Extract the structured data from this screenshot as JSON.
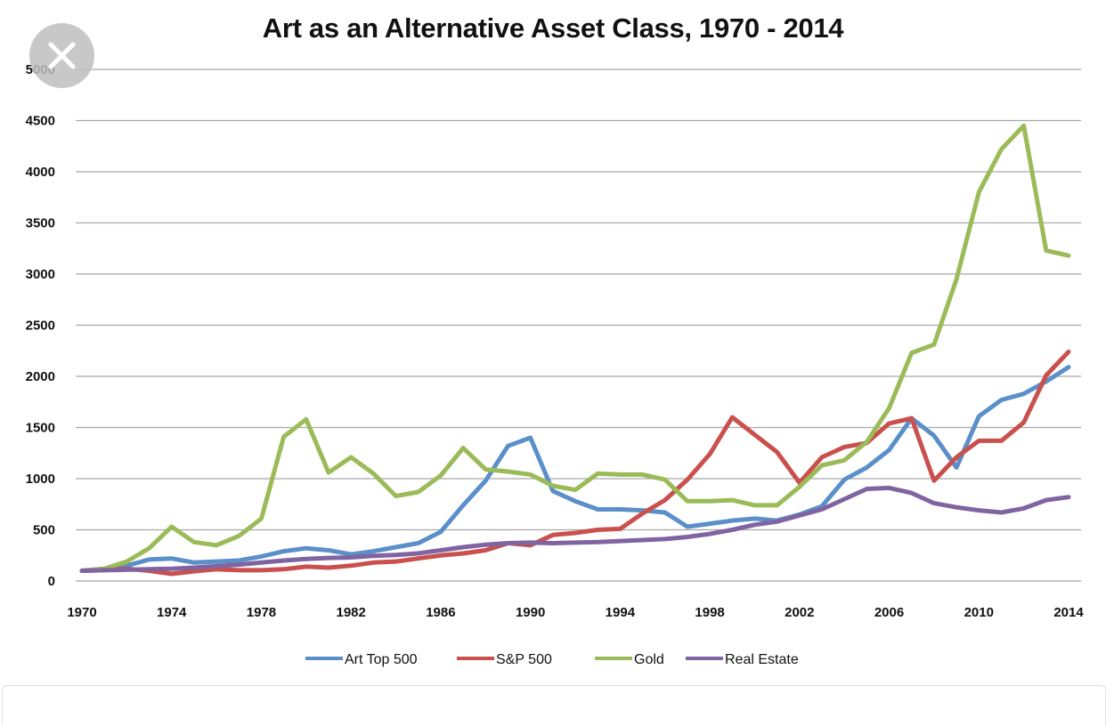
{
  "chart_data": {
    "type": "line",
    "title": "Art as an Alternative Asset Class, 1970 - 2014",
    "xlabel": "",
    "ylabel": "",
    "xlim": [
      1970,
      2014
    ],
    "ylim": [
      0,
      5000
    ],
    "yticks": [
      0,
      500,
      1000,
      1500,
      2000,
      2500,
      3000,
      3500,
      4000,
      4500,
      5000
    ],
    "xticks": [
      1970,
      1974,
      1978,
      1982,
      1986,
      1990,
      1994,
      1998,
      2002,
      2006,
      2010,
      2014
    ],
    "grid": "horizontal",
    "legend_position": "bottom",
    "x": [
      1970,
      1971,
      1972,
      1973,
      1974,
      1975,
      1976,
      1977,
      1978,
      1979,
      1980,
      1981,
      1982,
      1983,
      1984,
      1985,
      1986,
      1987,
      1988,
      1989,
      1990,
      1991,
      1992,
      1993,
      1994,
      1995,
      1996,
      1997,
      1998,
      1999,
      2000,
      2001,
      2002,
      2003,
      2004,
      2005,
      2006,
      2007,
      2008,
      2009,
      2010,
      2011,
      2012,
      2013,
      2014
    ],
    "series": [
      {
        "name": "Art Top 500",
        "color": "#5b8fc9",
        "values": [
          100,
          120,
          150,
          210,
          220,
          180,
          190,
          200,
          240,
          290,
          320,
          300,
          260,
          290,
          330,
          370,
          480,
          740,
          980,
          1320,
          1400,
          880,
          780,
          700,
          700,
          690,
          670,
          530,
          560,
          590,
          610,
          590,
          650,
          730,
          990,
          1110,
          1280,
          1590,
          1420,
          1110,
          1610,
          1770,
          1830,
          1950,
          2090
        ]
      },
      {
        "name": "S&P 500",
        "color": "#c9504d",
        "values": [
          100,
          105,
          120,
          100,
          70,
          95,
          115,
          105,
          105,
          115,
          140,
          130,
          150,
          180,
          190,
          220,
          250,
          270,
          300,
          370,
          350,
          450,
          470,
          500,
          510,
          660,
          790,
          990,
          1240,
          1600,
          1430,
          1260,
          960,
          1210,
          1310,
          1350,
          1540,
          1590,
          980,
          1210,
          1370,
          1370,
          1550,
          2010,
          2240
        ]
      },
      {
        "name": "Gold",
        "color": "#9bbb59",
        "values": [
          100,
          120,
          190,
          320,
          530,
          380,
          350,
          440,
          610,
          1410,
          1580,
          1060,
          1210,
          1050,
          830,
          870,
          1030,
          1300,
          1090,
          1070,
          1040,
          930,
          890,
          1050,
          1040,
          1040,
          990,
          780,
          780,
          790,
          740,
          740,
          920,
          1130,
          1180,
          1360,
          1690,
          2230,
          2310,
          2950,
          3800,
          4220,
          4450,
          3230,
          3180
        ]
      },
      {
        "name": "Real Estate",
        "color": "#8064a2",
        "values": [
          100,
          105,
          110,
          115,
          120,
          130,
          145,
          160,
          180,
          200,
          215,
          225,
          230,
          245,
          255,
          270,
          300,
          330,
          355,
          370,
          375,
          370,
          375,
          380,
          390,
          400,
          410,
          430,
          460,
          500,
          550,
          580,
          640,
          700,
          800,
          900,
          910,
          860,
          760,
          720,
          690,
          670,
          710,
          790,
          820
        ]
      }
    ]
  },
  "ui": {
    "close_icon": "close-icon"
  }
}
